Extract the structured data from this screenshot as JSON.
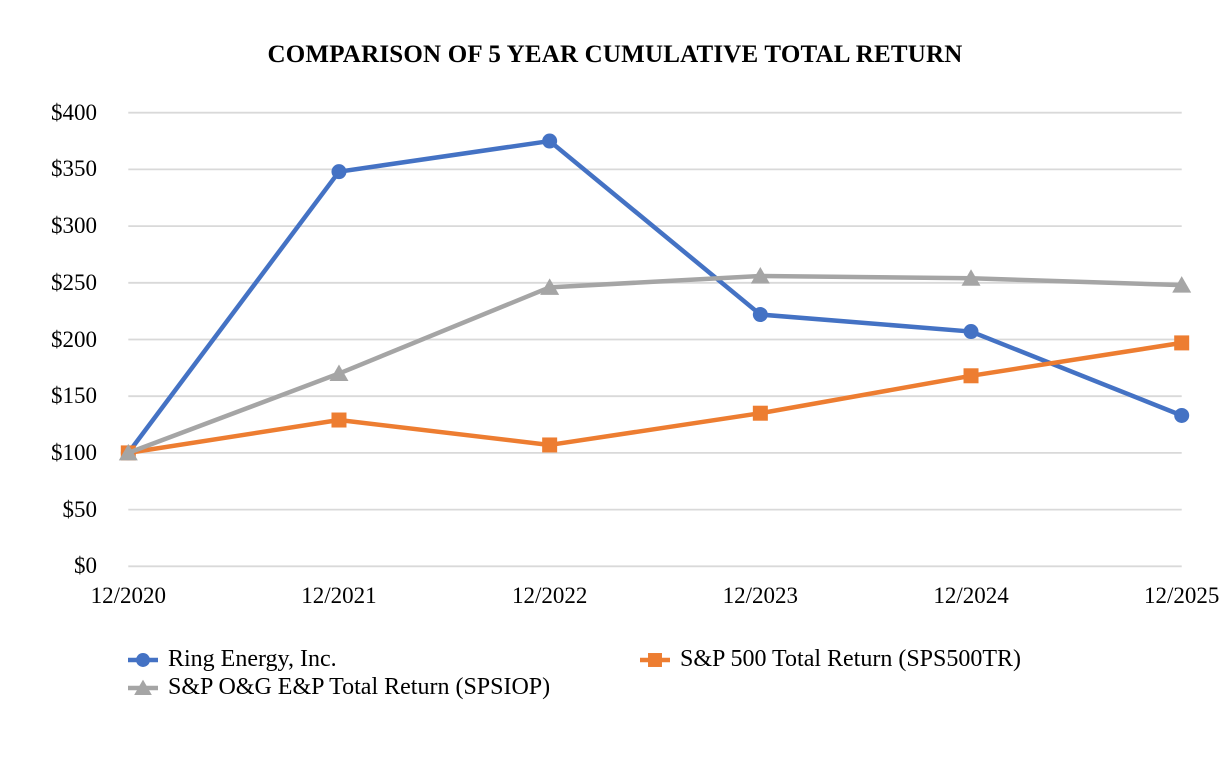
{
  "chart_data": {
    "type": "line",
    "title": "COMPARISON OF 5 YEAR CUMULATIVE TOTAL RETURN",
    "categories": [
      "12/2020",
      "12/2021",
      "12/2022",
      "12/2023",
      "12/2024",
      "12/2025"
    ],
    "series": [
      {
        "name": "Ring Energy, Inc.",
        "marker": "circle",
        "color": "#4472C4",
        "values": [
          100,
          348,
          375,
          222,
          207,
          133
        ]
      },
      {
        "name": "S&P 500 Total Return (SPS500TR)",
        "marker": "square",
        "color": "#ED7D31",
        "values": [
          100,
          129,
          107,
          135,
          168,
          197
        ]
      },
      {
        "name": "S&P O&G E&P Total Return (SPSIOP)",
        "marker": "triangle",
        "color": "#A5A5A5",
        "values": [
          100,
          170,
          246,
          256,
          254,
          248
        ]
      }
    ],
    "y_axis": {
      "min": 0,
      "max": 400,
      "step": 50,
      "tick_labels": [
        "$0",
        "$50",
        "$100",
        "$150",
        "$200",
        "$250",
        "$300",
        "$350",
        "$400"
      ]
    },
    "grid": "horizontal",
    "grid_color": "#D9D9D9",
    "legend_position": "bottom",
    "background_color": "#FFFFFF",
    "text_color": "#000000"
  }
}
